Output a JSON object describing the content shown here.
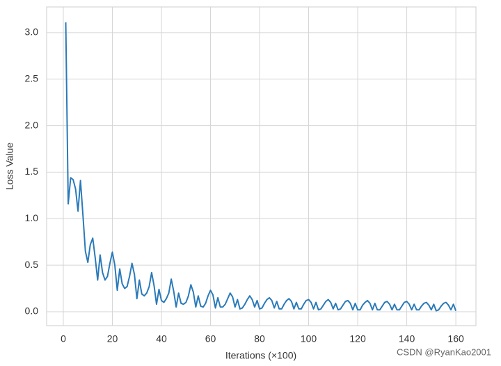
{
  "chart_data": {
    "type": "line",
    "xlabel": "Iterations (×100)",
    "ylabel": "Loss Value",
    "watermark": "CSDN @RyanKao2001",
    "x": [
      1,
      2,
      3,
      4,
      5,
      6,
      7,
      8,
      9,
      10,
      11,
      12,
      13,
      14,
      15,
      16,
      17,
      18,
      19,
      20,
      21,
      22,
      23,
      24,
      25,
      26,
      27,
      28,
      29,
      30,
      31,
      32,
      33,
      34,
      35,
      36,
      37,
      38,
      39,
      40,
      41,
      42,
      43,
      44,
      45,
      46,
      47,
      48,
      49,
      50,
      51,
      52,
      53,
      54,
      55,
      56,
      57,
      58,
      59,
      60,
      61,
      62,
      63,
      64,
      65,
      66,
      67,
      68,
      69,
      70,
      71,
      72,
      73,
      74,
      75,
      76,
      77,
      78,
      79,
      80,
      81,
      82,
      83,
      84,
      85,
      86,
      87,
      88,
      89,
      90,
      91,
      92,
      93,
      94,
      95,
      96,
      97,
      98,
      99,
      100,
      101,
      102,
      103,
      104,
      105,
      106,
      107,
      108,
      109,
      110,
      111,
      112,
      113,
      114,
      115,
      116,
      117,
      118,
      119,
      120,
      121,
      122,
      123,
      124,
      125,
      126,
      127,
      128,
      129,
      130,
      131,
      132,
      133,
      134,
      135,
      136,
      137,
      138,
      139,
      140,
      141,
      142,
      143,
      144,
      145,
      146,
      147,
      148,
      149,
      150,
      151,
      152,
      153,
      154,
      155,
      156,
      157,
      158,
      159,
      160
    ],
    "series": [
      {
        "color": "#2a7ab9",
        "values": [
          3.11,
          1.16,
          1.44,
          1.42,
          1.32,
          1.08,
          1.41,
          1.04,
          0.65,
          0.53,
          0.72,
          0.79,
          0.58,
          0.34,
          0.61,
          0.42,
          0.34,
          0.38,
          0.52,
          0.64,
          0.5,
          0.23,
          0.46,
          0.3,
          0.25,
          0.27,
          0.38,
          0.52,
          0.4,
          0.14,
          0.34,
          0.19,
          0.17,
          0.2,
          0.27,
          0.42,
          0.28,
          0.08,
          0.24,
          0.12,
          0.1,
          0.14,
          0.2,
          0.35,
          0.22,
          0.05,
          0.2,
          0.09,
          0.08,
          0.1,
          0.17,
          0.29,
          0.21,
          0.05,
          0.17,
          0.06,
          0.05,
          0.09,
          0.17,
          0.23,
          0.18,
          0.04,
          0.15,
          0.05,
          0.05,
          0.08,
          0.14,
          0.2,
          0.16,
          0.05,
          0.13,
          0.03,
          0.04,
          0.08,
          0.13,
          0.17,
          0.13,
          0.05,
          0.12,
          0.03,
          0.04,
          0.09,
          0.13,
          0.15,
          0.12,
          0.04,
          0.11,
          0.03,
          0.03,
          0.08,
          0.12,
          0.14,
          0.11,
          0.03,
          0.1,
          0.03,
          0.03,
          0.08,
          0.12,
          0.13,
          0.1,
          0.03,
          0.1,
          0.02,
          0.03,
          0.07,
          0.11,
          0.13,
          0.1,
          0.03,
          0.09,
          0.02,
          0.03,
          0.07,
          0.11,
          0.12,
          0.09,
          0.02,
          0.09,
          0.02,
          0.02,
          0.07,
          0.1,
          0.12,
          0.09,
          0.02,
          0.09,
          0.02,
          0.02,
          0.06,
          0.1,
          0.11,
          0.08,
          0.02,
          0.08,
          0.02,
          0.02,
          0.06,
          0.1,
          0.11,
          0.08,
          0.02,
          0.08,
          0.02,
          0.02,
          0.06,
          0.09,
          0.1,
          0.07,
          0.02,
          0.08,
          0.01,
          0.02,
          0.06,
          0.09,
          0.1,
          0.07,
          0.02,
          0.08,
          0.01
        ]
      }
    ],
    "xlim": [
      -6.8,
      168.2
    ],
    "xticks": [
      0,
      20,
      40,
      60,
      80,
      100,
      120,
      140,
      160
    ],
    "ylim": [
      -0.15,
      3.276
    ],
    "yticks": [
      {
        "value": 0,
        "label": "0.0"
      },
      0.5,
      {
        "value": 1,
        "label": "1.0"
      },
      1.5,
      {
        "value": 2,
        "label": "2.0"
      },
      2.5,
      {
        "value": 3,
        "label": "3.0"
      }
    ],
    "grid": true
  }
}
